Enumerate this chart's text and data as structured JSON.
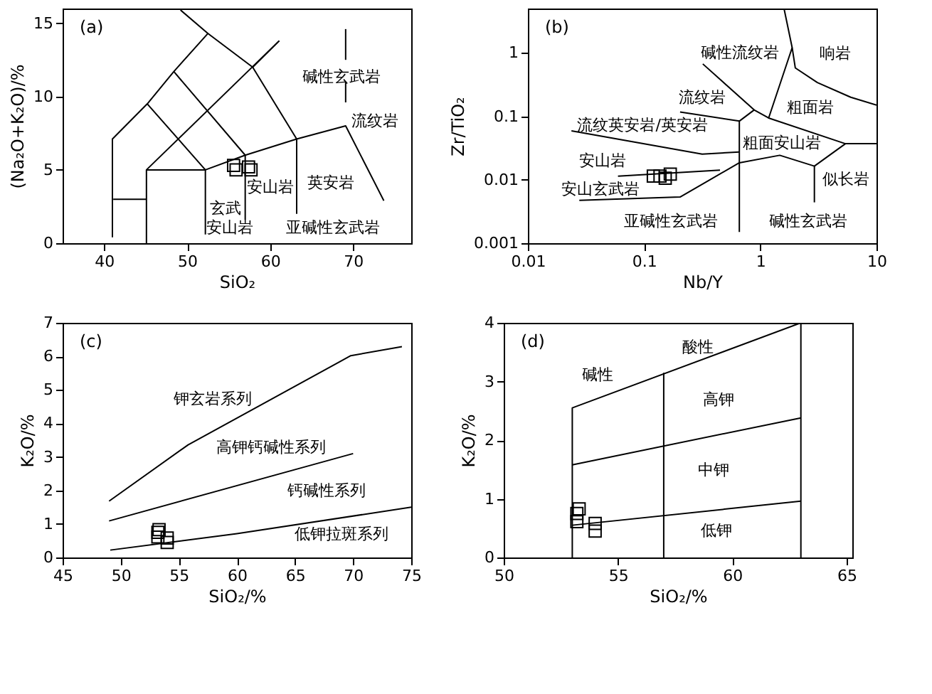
{
  "chart_data": [
    {
      "type": "scatter",
      "title": "(a)",
      "xlabel": "SiO₂",
      "ylabel": "(Na₂O+K₂O)/%",
      "xlim": [
        35,
        77
      ],
      "ylim": [
        0,
        16
      ],
      "xticks": [
        40,
        50,
        60,
        70
      ],
      "yticks": [
        0,
        5,
        10,
        15
      ],
      "series": [
        {
          "type": "scatter",
          "marker": "square",
          "color": "#000000",
          "x": [
            55.6,
            55.9,
            57.4,
            57.7
          ],
          "values": [
            5.3,
            5.0,
            5.2,
            5.0
          ]
        },
        {
          "type": "line",
          "color": "#000000",
          "x": [
            41,
            41,
            45.2,
            48.4,
            52.5,
            49.2
          ],
          "values": [
            0.4,
            7.1,
            9.5,
            11.7,
            14.3,
            15.9
          ]
        },
        {
          "type": "line",
          "color": "#000000",
          "x": [
            52.5,
            57.9,
            63.2,
            63.2
          ],
          "values": [
            14.3,
            12.0,
            7.1,
            2.0
          ]
        },
        {
          "type": "line",
          "color": "#000000",
          "x": [
            57.9,
            61.1
          ],
          "values": [
            12.0,
            13.8
          ]
        },
        {
          "type": "line",
          "color": "#000000",
          "x": [
            41.1,
            45.1
          ],
          "values": [
            3.0,
            3.0
          ]
        },
        {
          "type": "line",
          "color": "#000000",
          "x": [
            45.1,
            45.1,
            52.2,
            52.2
          ],
          "values": [
            0,
            5.0,
            5.0,
            0.6
          ]
        },
        {
          "type": "line",
          "color": "#000000",
          "x": [
            45.1,
            61.1
          ],
          "values": [
            5.0,
            13.8
          ]
        },
        {
          "type": "line",
          "color": "#000000",
          "x": [
            45.2,
            52.2,
            57.0,
            63.2,
            69.1,
            73.7
          ],
          "values": [
            9.5,
            5.0,
            6.0,
            7.1,
            8.0,
            2.9
          ]
        },
        {
          "type": "line",
          "color": "#000000",
          "x": [
            48.4,
            57.0,
            57.0
          ],
          "values": [
            11.7,
            6.0,
            1.6
          ]
        },
        {
          "type": "line",
          "color": "#000000",
          "x": [
            69.1,
            69.1
          ],
          "values": [
            9.6,
            11.0
          ]
        },
        {
          "type": "line",
          "color": "#000000",
          "x": [
            69.1,
            69.1
          ],
          "values": [
            12.5,
            14.6
          ]
        }
      ],
      "annotations": [
        "碱性玄武岩",
        "流纹岩",
        "英安岩",
        "安山岩",
        "玄武",
        "安山岩",
        "亚碱性玄武岩"
      ]
    },
    {
      "type": "scatter",
      "title": "(b)",
      "xlabel": "Nb/Y",
      "ylabel": "Zr/TiO₂",
      "log": "xy",
      "xlim": [
        0.01,
        10
      ],
      "ylim": [
        0.001,
        5
      ],
      "xticks": [
        0.01,
        0.1,
        1,
        10
      ],
      "yticks": [
        0.001,
        0.01,
        0.1,
        1
      ],
      "series": [
        {
          "type": "scatter",
          "marker": "square",
          "color": "#000000",
          "x": [
            0.12,
            0.137,
            0.152,
            0.168
          ],
          "values": [
            0.0114,
            0.0114,
            0.0106,
            0.0123
          ]
        },
        {
          "type": "line",
          "color": "#000000",
          "x": [
            1.6,
            1.88,
            2.0,
            3.1,
            6.0,
            10
          ],
          "values": [
            5,
            1.21,
            0.58,
            0.34,
            0.2,
            0.15
          ]
        },
        {
          "type": "line",
          "color": "#000000",
          "x": [
            1.88,
            1.18,
            5.4,
            10
          ],
          "values": [
            1.21,
            0.094,
            0.037,
            0.037
          ]
        },
        {
          "type": "line",
          "color": "#000000",
          "x": [
            0.32,
            0.885,
            0.66,
            0.66
          ],
          "values": [
            0.67,
            0.126,
            0.084,
            0.0015
          ]
        },
        {
          "type": "line",
          "color": "#000000",
          "x": [
            0.885,
            1.18
          ],
          "values": [
            0.126,
            0.094
          ]
        },
        {
          "type": "line",
          "color": "#000000",
          "x": [
            0.204,
            0.66
          ],
          "values": [
            0.117,
            0.084
          ]
        },
        {
          "type": "line",
          "color": "#000000",
          "x": [
            0.0237,
            0.316,
            0.66
          ],
          "values": [
            0.059,
            0.0254,
            0.0274
          ]
        },
        {
          "type": "line",
          "color": "#000000",
          "x": [
            0.0277,
            0.204,
            0.66,
            1.47,
            2.92,
            5.4
          ],
          "values": [
            0.00475,
            0.00534,
            0.0185,
            0.0243,
            0.0164,
            0.037
          ]
        },
        {
          "type": "line",
          "color": "#000000",
          "x": [
            2.92,
            2.92
          ],
          "values": [
            0.0164,
            0.0044
          ]
        },
        {
          "type": "line",
          "color": "#000000",
          "x": [
            0.0596,
            0.45
          ],
          "values": [
            0.0114,
            0.0142
          ]
        }
      ],
      "annotations": [
        "碱性流纹岩",
        "响岩",
        "流纹岩",
        "粗面岩",
        "流纹英安岩/英安岩",
        "粗面安山岩",
        "安山岩",
        "似长岩",
        "安山玄武岩",
        "亚碱性玄武岩",
        "碱性玄武岩"
      ]
    },
    {
      "type": "scatter",
      "title": "(c)",
      "xlabel": "SiO₂/%",
      "ylabel": "K₂O/%",
      "xlim": [
        45,
        75
      ],
      "ylim": [
        0,
        7
      ],
      "xticks": [
        45,
        50,
        55,
        60,
        65,
        70,
        75
      ],
      "yticks": [
        0,
        1,
        2,
        3,
        4,
        5,
        6,
        7
      ],
      "series": [
        {
          "type": "scatter",
          "marker": "square",
          "color": "#000000",
          "x": [
            53.3,
            53.2,
            53.2,
            54.0,
            54.0
          ],
          "values": [
            0.83,
            0.75,
            0.61,
            0.58,
            0.45
          ]
        },
        {
          "type": "line",
          "color": "#000000",
          "x": [
            49,
            55.8,
            69.8,
            74.2
          ],
          "values": [
            1.68,
            3.36,
            6.02,
            6.29
          ]
        },
        {
          "type": "line",
          "color": "#000000",
          "x": [
            49,
            70
          ],
          "values": [
            1.09,
            3.1
          ]
        },
        {
          "type": "line",
          "color": "#000000",
          "x": [
            49.1,
            60,
            75
          ],
          "values": [
            0.22,
            0.71,
            1.5
          ]
        }
      ],
      "annotations": [
        "钾玄岩系列",
        "高钾钙碱性系列",
        "钙碱性系列",
        "低钾拉斑系列"
      ]
    },
    {
      "type": "scatter",
      "title": "(d)",
      "xlabel": "SiO₂/%",
      "ylabel": "K₂O/%",
      "xlim": [
        50,
        65.25
      ],
      "ylim": [
        0,
        4
      ],
      "xticks": [
        50,
        55,
        60,
        65
      ],
      "yticks": [
        0,
        1,
        2,
        3,
        4
      ],
      "series": [
        {
          "type": "scatter",
          "marker": "square",
          "color": "#000000",
          "x": [
            53.3,
            53.2,
            53.2,
            54.0,
            54.0
          ],
          "values": [
            0.83,
            0.75,
            0.61,
            0.58,
            0.45
          ]
        },
        {
          "type": "line",
          "color": "#000000",
          "x": [
            53,
            53,
            63,
            63
          ],
          "values": [
            0,
            2.55,
            4.0,
            0
          ]
        },
        {
          "type": "line",
          "color": "#000000",
          "x": [
            53,
            63
          ],
          "values": [
            1.58,
            2.38
          ]
        },
        {
          "type": "line",
          "color": "#000000",
          "x": [
            53,
            63
          ],
          "values": [
            0.55,
            0.96
          ]
        },
        {
          "type": "line",
          "color": "#000000",
          "x": [
            57,
            57
          ],
          "values": [
            0,
            3.15
          ]
        }
      ],
      "annotations": [
        "酸性",
        "碱性",
        "高钾",
        "中钾",
        "低钾"
      ]
    }
  ]
}
